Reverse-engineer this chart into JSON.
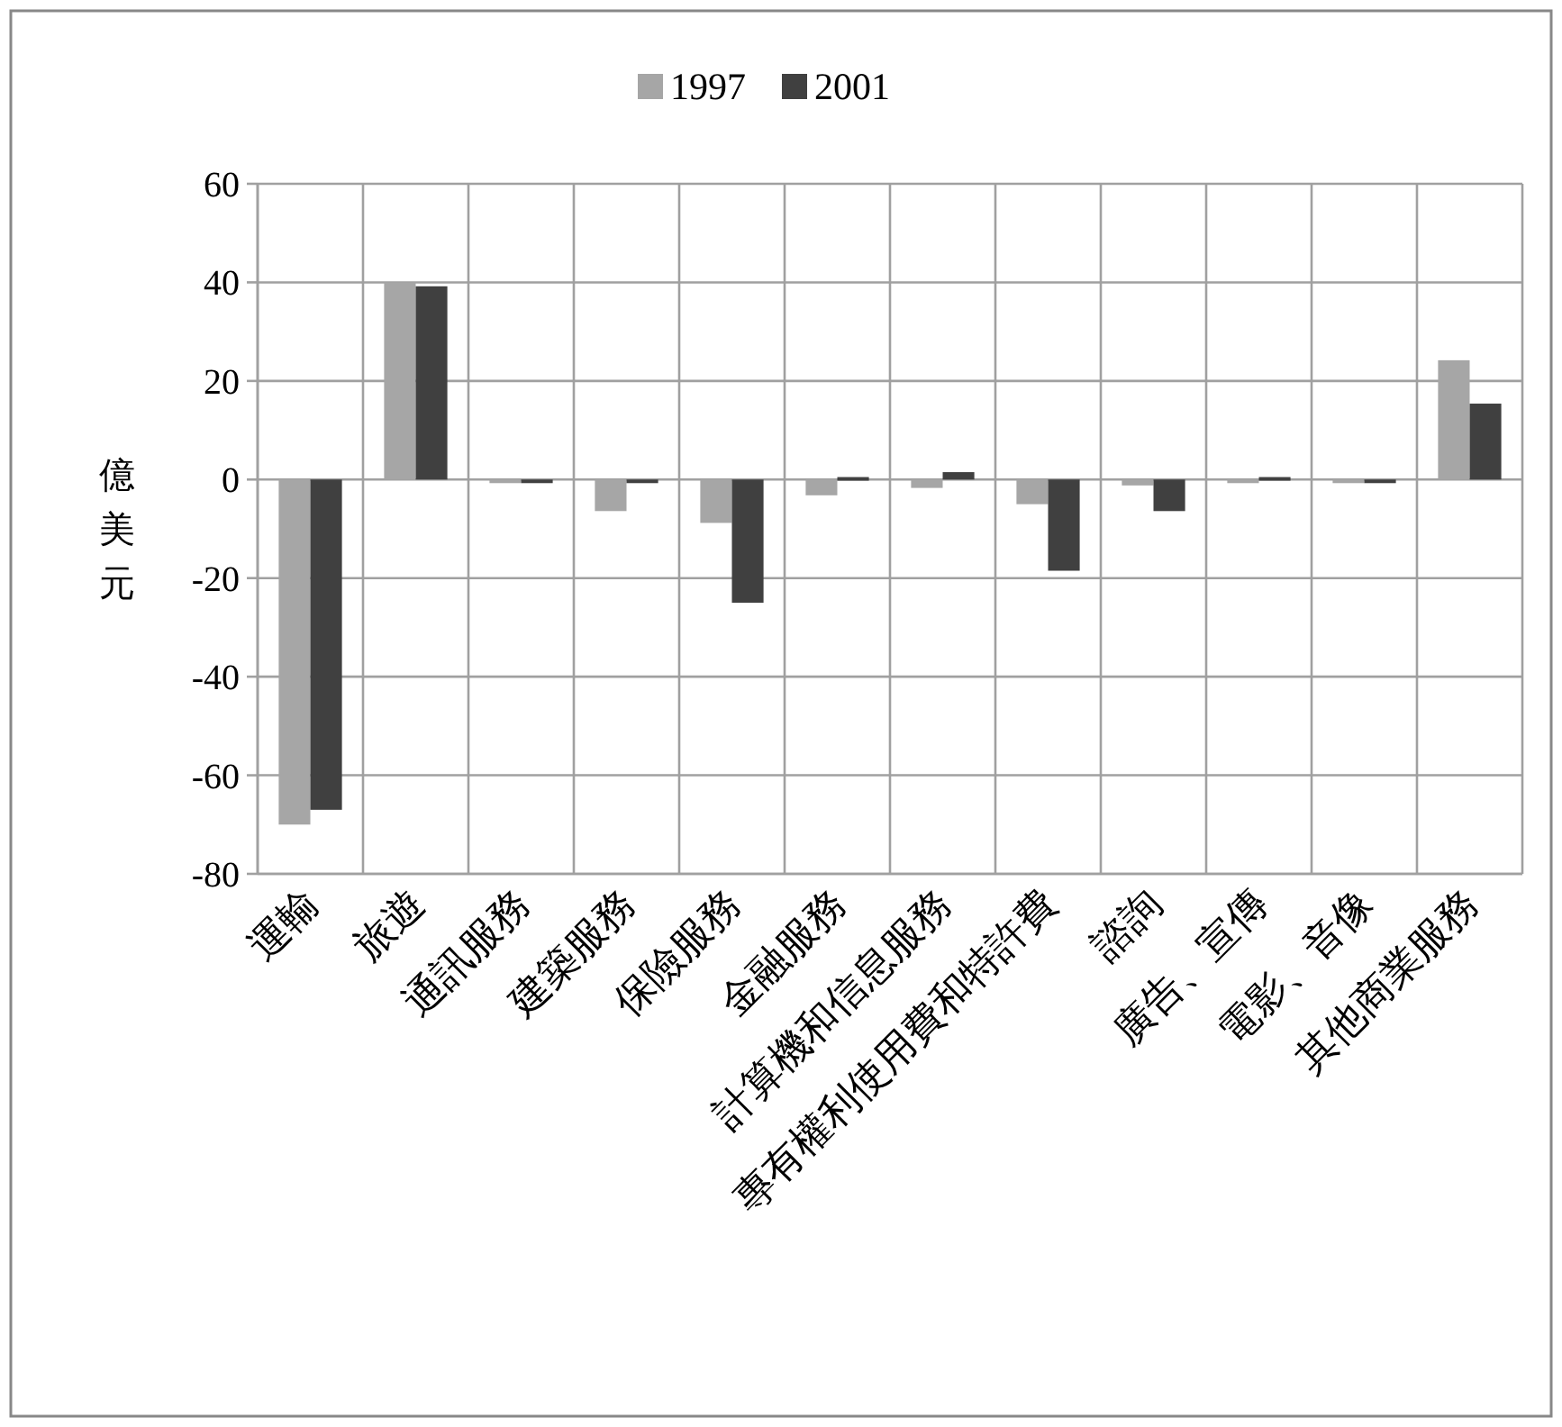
{
  "chart_data": {
    "type": "bar",
    "ylabel": "億美元",
    "categories": [
      "運輸",
      "旅遊",
      "通訊服務",
      "建築服務",
      "保險服務",
      "金融服務",
      "計算機和信息服務",
      "專有權利使用費和特許費",
      "諮詢",
      "廣告、宣傳",
      "電影、音像",
      "其他商業服務"
    ],
    "series": [
      {
        "name": "1997",
        "color": "#a6a6a6",
        "values": [
          -70,
          40,
          -0.3,
          -6.4,
          -8.8,
          -3.2,
          -1.7,
          -5,
          -1.2,
          -0.6,
          -0.3,
          24.2
        ]
      },
      {
        "name": "2001",
        "color": "#404040",
        "values": [
          -67,
          39.2,
          -0.5,
          -0.5,
          -25,
          0.5,
          1.5,
          -18.5,
          -6.4,
          0.5,
          -0.6,
          15.4
        ]
      }
    ],
    "ylim": [
      -80,
      60
    ],
    "yticks": [
      -80,
      -60,
      -40,
      -20,
      0,
      20,
      40,
      60
    ],
    "grid": true,
    "legend": "top"
  }
}
